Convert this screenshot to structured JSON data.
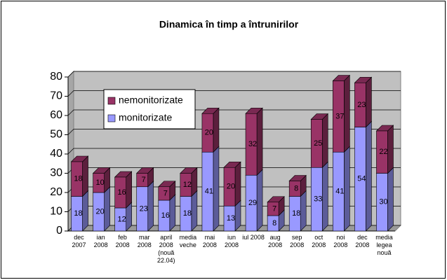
{
  "chart_data": {
    "type": "bar",
    "stacked": true,
    "title": "Dinamica în timp a întrunirilor",
    "categories": [
      "dec 2007",
      "ian 2008",
      "feb 2008",
      "mar 2008",
      "april 2008 (nouă 22.04)",
      "media veche",
      "mai 2008",
      "iun 2008",
      "iul 2008",
      "aug 2008",
      "sep 2008",
      "oct 2008",
      "noi 2008",
      "dec 2008",
      "media legea nouă"
    ],
    "series": [
      {
        "name": "monitorizate",
        "color": "#9999ff",
        "values": [
          18,
          20,
          12,
          23,
          16,
          18,
          41,
          13,
          29,
          8,
          18,
          33,
          41,
          54,
          30
        ]
      },
      {
        "name": "nemonitorizate",
        "color": "#993366",
        "values": [
          18,
          10,
          16,
          7,
          7,
          12,
          20,
          20,
          32,
          7,
          8,
          25,
          37,
          23,
          22
        ]
      }
    ],
    "ylim": [
      0,
      80
    ],
    "yticks": [
      0,
      10,
      20,
      30,
      40,
      50,
      60,
      70,
      80
    ],
    "grid": true,
    "legend": "upper left"
  }
}
